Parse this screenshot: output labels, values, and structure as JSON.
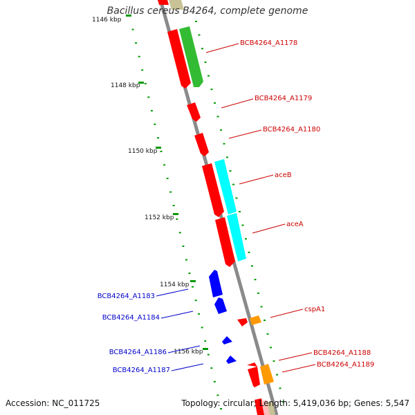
{
  "title": "Bacillus cereus B4264, complete genome",
  "footer": {
    "accession": "Accession: NC_011725",
    "summary": "Topology: circular; Length: 5,419,036 bp; Genes: 5,547"
  },
  "kbp_ticks": [
    "1146 kbp",
    "1148 kbp",
    "1150 kbp",
    "1152 kbp",
    "1154 kbp",
    "1156 kbp"
  ],
  "colors": {
    "plus_strand_label": "#cc0000",
    "minus_strand_label": "#0000cc",
    "backbone": "#8a8a8a",
    "cds_red": "#ff0000",
    "gene_green": "#33bb33",
    "gene_cyan": "#00ffff",
    "gene_blue": "#0000ff",
    "gene_orange": "#ff9900",
    "gene_olive": "#c8c296",
    "tick_green": "#009900"
  },
  "gene_labels": {
    "a1178": "BCB4264_A1178",
    "a1179": "BCB4264_A1179",
    "a1180": "BCB4264_A1180",
    "aceB": "aceB",
    "aceA": "aceA",
    "a1183": "BCB4264_A1183",
    "a1184": "BCB4264_A1184",
    "cspA1": "cspA1",
    "a1186": "BCB4264_A1186",
    "a1187": "BCB4264_A1187",
    "a1188": "BCB4264_A1188",
    "a1189": "BCB4264_A1189"
  }
}
